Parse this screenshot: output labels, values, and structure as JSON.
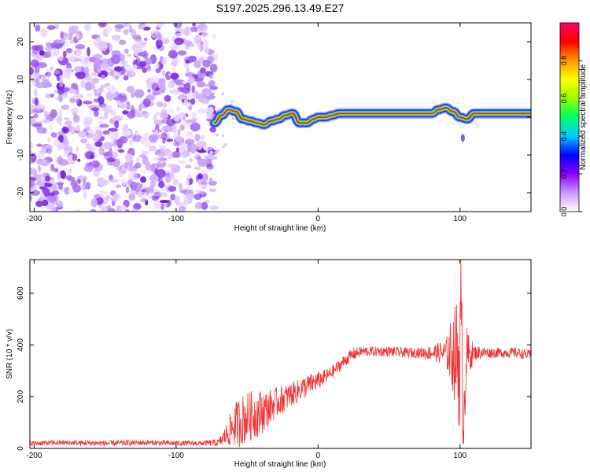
{
  "figure": {
    "title": "S197.2025.296.13.49.E27"
  },
  "chart_data": [
    {
      "type": "heatmap",
      "title": "S197.2025.296.13.49.E27",
      "xlabel": "Height of straight line (km)",
      "ylabel": "Frequency (Hz)",
      "xlim": [
        -203,
        150
      ],
      "ylim": [
        -25,
        25
      ],
      "xticks": [
        -200,
        -100,
        0,
        100
      ],
      "yticks": [
        -20,
        -10,
        0,
        10,
        20
      ],
      "xtick_labels": [
        "-200",
        "-100",
        "0",
        "100"
      ],
      "ytick_labels": [
        "-20",
        "-10",
        "0",
        "10",
        "20"
      ],
      "noise_region_x": [
        -203,
        -73
      ],
      "signal_track": {
        "x": [
          -73,
          -68,
          -63,
          -58,
          -53,
          -48,
          -43,
          -38,
          -33,
          -28,
          -23,
          -18,
          -13,
          -8,
          -3,
          0,
          5,
          10,
          15,
          20,
          40,
          60,
          70,
          80,
          85,
          90,
          95,
          100,
          105,
          110,
          150
        ],
        "freq": [
          -1.5,
          0.5,
          2.0,
          1.5,
          -0.5,
          -1.0,
          -1.5,
          -2.0,
          -1.0,
          -0.5,
          0.5,
          1.0,
          -1.5,
          -1.5,
          -0.5,
          0.0,
          0.0,
          0.5,
          1.0,
          1.0,
          1.0,
          1.0,
          1.0,
          1.0,
          2.0,
          2.5,
          1.5,
          0.0,
          -0.5,
          1.0,
          1.0
        ]
      },
      "colorbar": {
        "label": "Normalized spectral amplitude",
        "range": [
          0.0,
          1.0
        ],
        "ticks": [
          "0.0",
          "0.2",
          "0.4",
          "0.6",
          "0.8"
        ],
        "colormap": [
          "#ffffff",
          "#cc99ff",
          "#8800ff",
          "#0000ff",
          "#00ccff",
          "#00ff66",
          "#99ff00",
          "#ffff00",
          "#ff9900",
          "#ff0000",
          "#ff0066"
        ]
      }
    },
    {
      "type": "line",
      "xlabel": "Height of straight line (km)",
      "ylabel": "SNR (10 * v/v)",
      "xlim": [
        -203,
        150
      ],
      "ylim": [
        0,
        730
      ],
      "xticks": [
        -200,
        -100,
        0,
        100
      ],
      "yticks": [
        0,
        200,
        400,
        600
      ],
      "xtick_labels": [
        "-200",
        "-100",
        "0",
        "100"
      ],
      "ytick_labels": [
        "0",
        "200",
        "400",
        "600"
      ],
      "series": [
        {
          "name": "SNR",
          "color": "#ee3333",
          "x": [
            -203,
            -180,
            -150,
            -120,
            -100,
            -80,
            -70,
            -65,
            -60,
            -55,
            -50,
            -45,
            -40,
            -35,
            -30,
            -25,
            -20,
            -15,
            -10,
            -5,
            0,
            5,
            10,
            15,
            20,
            25,
            30,
            40,
            50,
            60,
            70,
            80,
            90,
            95,
            98,
            100,
            101,
            102,
            103,
            104,
            105,
            110,
            120,
            130,
            140,
            150
          ],
          "y": [
            20,
            22,
            20,
            22,
            20,
            20,
            22,
            50,
            85,
            105,
            120,
            130,
            140,
            155,
            175,
            190,
            205,
            220,
            235,
            250,
            262,
            275,
            295,
            320,
            345,
            365,
            375,
            375,
            375,
            370,
            370,
            370,
            370,
            370,
            360,
            340,
            300,
            300,
            300,
            340,
            360,
            370,
            370,
            370,
            370,
            360
          ],
          "noise": [
            10,
            10,
            12,
            10,
            10,
            10,
            15,
            40,
            80,
            100,
            100,
            95,
            90,
            70,
            60,
            55,
            50,
            45,
            45,
            40,
            35,
            30,
            25,
            25,
            25,
            25,
            20,
            20,
            20,
            20,
            20,
            30,
            50,
            160,
            230,
            300,
            300,
            300,
            300,
            200,
            100,
            30,
            20,
            20,
            20,
            20
          ]
        }
      ],
      "peak": {
        "x": 100.5,
        "y": 730,
        "min_x": 102.5,
        "min_y": 18
      }
    }
  ]
}
